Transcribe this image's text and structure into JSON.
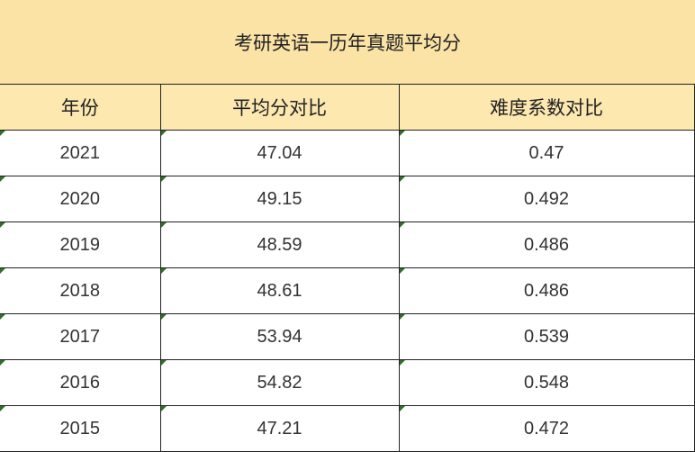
{
  "title": "考研英语一历年真题平均分",
  "headers": [
    "年份",
    "平均分对比",
    "难度系数对比"
  ],
  "rows": [
    [
      "2021",
      "47.04",
      "0.47"
    ],
    [
      "2020",
      "49.15",
      "0.492"
    ],
    [
      "2019",
      "48.59",
      "0.486"
    ],
    [
      "2018",
      "48.61",
      "0.486"
    ],
    [
      "2017",
      "53.94",
      "0.539"
    ],
    [
      "2016",
      "54.82",
      "0.548"
    ],
    [
      "2015",
      "47.21",
      "0.472"
    ]
  ],
  "colors": {
    "title_bg": "#fbe3a6",
    "header_bg": "#fde8b0",
    "cell_marker": "#2f6f2a"
  }
}
